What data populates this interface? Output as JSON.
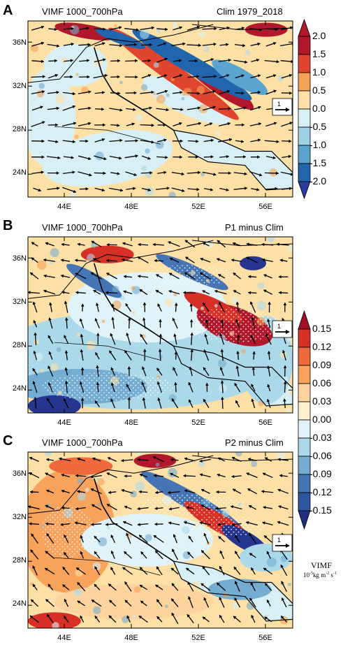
{
  "panels": [
    {
      "label": "A",
      "title_left": "VIMF 1000_700hPa",
      "title_right": "Clim 1979_2018",
      "ref_vector_label": "1"
    },
    {
      "label": "B",
      "title_left": "VIMF 1000_700hPa",
      "title_right": "P1 minus Clim",
      "ref_vector_label": "1"
    },
    {
      "label": "C",
      "title_left": "VIMF 1000_700hPa",
      "title_right": "P2 minus Clim",
      "ref_vector_label": "1"
    }
  ],
  "lat_labels": [
    "36N",
    "32N",
    "28N",
    "24N"
  ],
  "lon_labels": [
    "44E",
    "48E",
    "52E",
    "56E"
  ],
  "colorbar_a": {
    "labels": [
      "2.0",
      "1.5",
      "1.0",
      "0.5",
      "0.0",
      "-0.5",
      "-1.0",
      "-1.5",
      "-2.0"
    ],
    "colors": [
      "#b2182b",
      "#e0452f",
      "#f4a257",
      "#fde0a6",
      "#d8f0f5",
      "#9fd1e4",
      "#5aa4cf",
      "#2166ac"
    ],
    "max_color": "#b2182b",
    "min_color": "#2b3c9e"
  },
  "colorbar_bc": {
    "labels": [
      "0.15",
      "0.12",
      "0.09",
      "0.06",
      "0.03",
      "0.00",
      "-0.03",
      "-0.06",
      "-0.09",
      "-0.12",
      "-0.15"
    ],
    "colors": [
      "#b2182b",
      "#d73027",
      "#ee6a3c",
      "#f7a35c",
      "#fdd49e",
      "#fdf0cf",
      "#e0f3f8",
      "#abd9e9",
      "#74add1",
      "#4575b4",
      "#2c56a0",
      "#26368f"
    ],
    "max_color": "#a50f25",
    "min_color": "#21307e"
  },
  "units": {
    "name": "VIMF",
    "unit_base": "10",
    "unit_exp": "-5",
    "unit_rest": "kg m",
    "unit_exp2": "-2",
    "unit_s": " s",
    "unit_exp3": "-1"
  },
  "colors": {
    "land": "#fde0a6",
    "gulf": "#d8f0f5",
    "coast": "#000000"
  }
}
